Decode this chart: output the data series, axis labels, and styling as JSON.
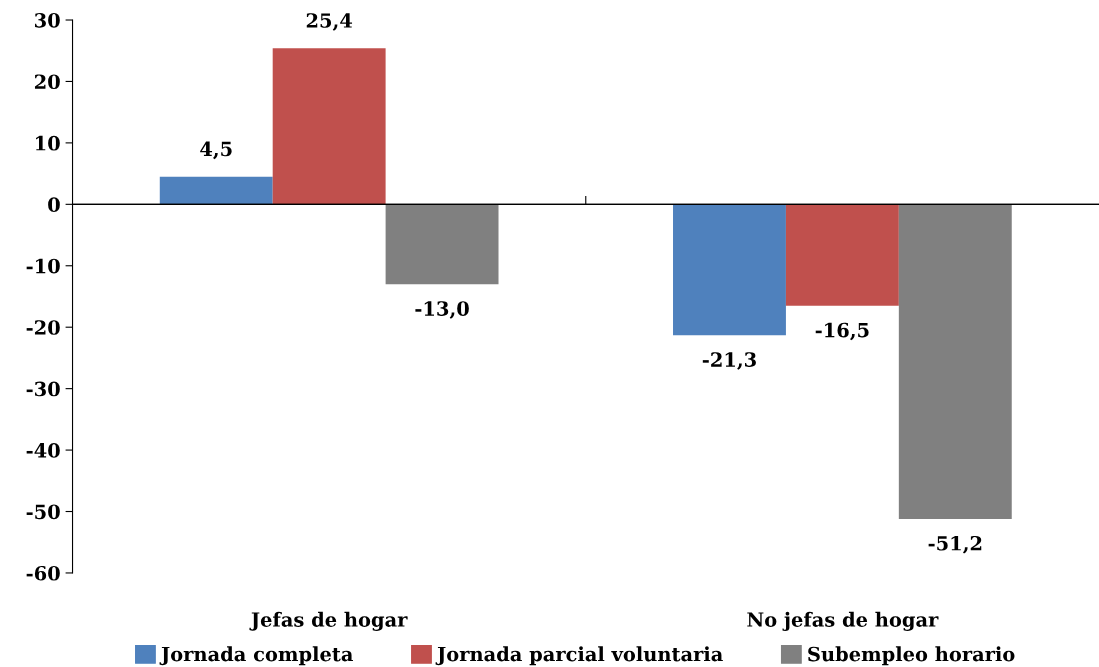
{
  "chart_data": {
    "type": "bar",
    "categories": [
      "Jefas de hogar",
      "No jefas de hogar"
    ],
    "series": [
      {
        "name": "Jornada completa",
        "color": "#4f81bd",
        "values": [
          4.5,
          -21.3
        ],
        "value_labels": [
          "4,5",
          "-21,3"
        ]
      },
      {
        "name": "Jornada parcial voluntaria",
        "color": "#c0504d",
        "values": [
          25.4,
          -16.5
        ],
        "value_labels": [
          "25,4",
          "-16,5"
        ]
      },
      {
        "name": "Subempleo horario",
        "color": "#808080",
        "values": [
          -13.0,
          -51.2
        ],
        "value_labels": [
          "-13,0",
          "-51,2"
        ]
      }
    ],
    "ylim": [
      -60,
      30
    ],
    "yticks": [
      -60,
      -50,
      -40,
      -30,
      -20,
      -10,
      0,
      10,
      20,
      30
    ],
    "ref_lines": [
      {
        "axis": "y",
        "value": 0,
        "color": "#000000"
      }
    ],
    "grid": false,
    "legend": "bottom"
  }
}
